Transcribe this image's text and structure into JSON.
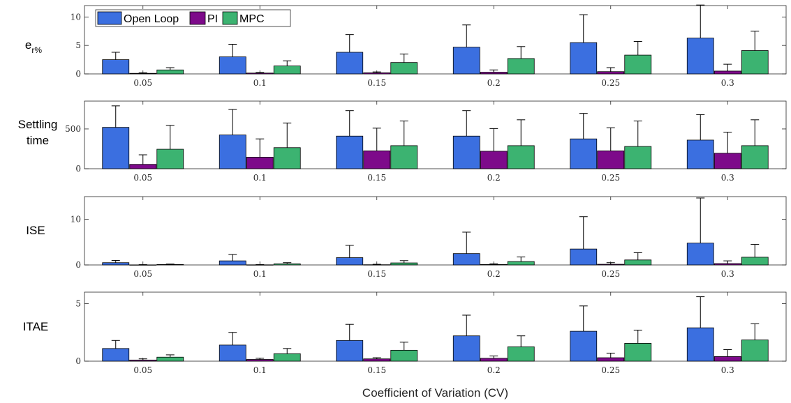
{
  "chart_data": {
    "type": "bar",
    "error_bars": true,
    "xlabel": "Coefficient of Variation (CV)",
    "categories": [
      "0.05",
      "0.1",
      "0.15",
      "0.2",
      "0.25",
      "0.3"
    ],
    "legend": {
      "placement": "top-left",
      "entries": [
        {
          "name": "Open Loop",
          "color": "#3b6fe0"
        },
        {
          "name": "PI",
          "color": "#7d0a8a"
        },
        {
          "name": "MPC",
          "color": "#3cb371"
        }
      ]
    },
    "panels": [
      {
        "ylabel": "e",
        "ylabel_sub": "r%",
        "ylim": [
          0,
          12
        ],
        "yticks": [
          0,
          5,
          10
        ],
        "series": [
          {
            "name": "Open Loop",
            "values": [
              2.5,
              3.0,
              3.8,
              4.7,
              5.5,
              6.3
            ],
            "errors": [
              1.3,
              2.2,
              3.1,
              3.9,
              4.9,
              5.8
            ]
          },
          {
            "name": "PI",
            "values": [
              0.1,
              0.15,
              0.2,
              0.3,
              0.4,
              0.5
            ],
            "errors": [
              0.1,
              0.1,
              0.15,
              0.4,
              0.7,
              1.2
            ]
          },
          {
            "name": "MPC",
            "values": [
              0.7,
              1.4,
              2.0,
              2.7,
              3.3,
              4.1
            ],
            "errors": [
              0.4,
              0.9,
              1.5,
              2.1,
              2.4,
              3.4
            ]
          }
        ]
      },
      {
        "ylabel": "Settling",
        "ylabel2": "time",
        "ylim": [
          0,
          850
        ],
        "yticks": [
          0,
          500
        ],
        "series": [
          {
            "name": "Open Loop",
            "values": [
              520,
              425,
              410,
              410,
              375,
              360
            ],
            "errors": [
              270,
              320,
              320,
              320,
              320,
              320
            ]
          },
          {
            "name": "PI",
            "values": [
              55,
              145,
              225,
              220,
              225,
              195
            ],
            "errors": [
              120,
              230,
              285,
              285,
              290,
              265
            ]
          },
          {
            "name": "MPC",
            "values": [
              245,
              265,
              290,
              290,
              280,
              290
            ],
            "errors": [
              300,
              310,
              310,
              325,
              320,
              325
            ]
          }
        ]
      },
      {
        "ylabel": "ISE",
        "ylim": [
          0,
          15
        ],
        "yticks": [
          0,
          10
        ],
        "series": [
          {
            "name": "Open Loop",
            "values": [
              0.5,
              0.9,
              1.6,
              2.5,
              3.5,
              4.8
            ],
            "errors": [
              0.5,
              1.4,
              2.7,
              4.7,
              7.1,
              9.9
            ]
          },
          {
            "name": "PI",
            "values": [
              0.02,
              0.03,
              0.05,
              0.1,
              0.15,
              0.3
            ],
            "errors": [
              0.05,
              0.05,
              0.1,
              0.15,
              0.35,
              0.6
            ]
          },
          {
            "name": "MPC",
            "values": [
              0.1,
              0.25,
              0.45,
              0.75,
              1.1,
              1.7
            ],
            "errors": [
              0.1,
              0.25,
              0.5,
              1.0,
              1.6,
              2.8
            ]
          }
        ]
      },
      {
        "ylabel": "ITAE",
        "ylim": [
          0,
          6
        ],
        "yticks": [
          0,
          5
        ],
        "series": [
          {
            "name": "Open Loop",
            "values": [
              1.1,
              1.4,
              1.8,
              2.2,
              2.6,
              2.9
            ],
            "errors": [
              0.7,
              1.1,
              1.4,
              1.8,
              2.2,
              2.7
            ]
          },
          {
            "name": "PI",
            "values": [
              0.1,
              0.15,
              0.2,
              0.25,
              0.3,
              0.4
            ],
            "errors": [
              0.1,
              0.1,
              0.1,
              0.2,
              0.4,
              0.6
            ]
          },
          {
            "name": "MPC",
            "values": [
              0.35,
              0.65,
              0.95,
              1.25,
              1.55,
              1.85
            ],
            "errors": [
              0.2,
              0.45,
              0.7,
              0.95,
              1.15,
              1.4
            ]
          }
        ]
      }
    ]
  }
}
